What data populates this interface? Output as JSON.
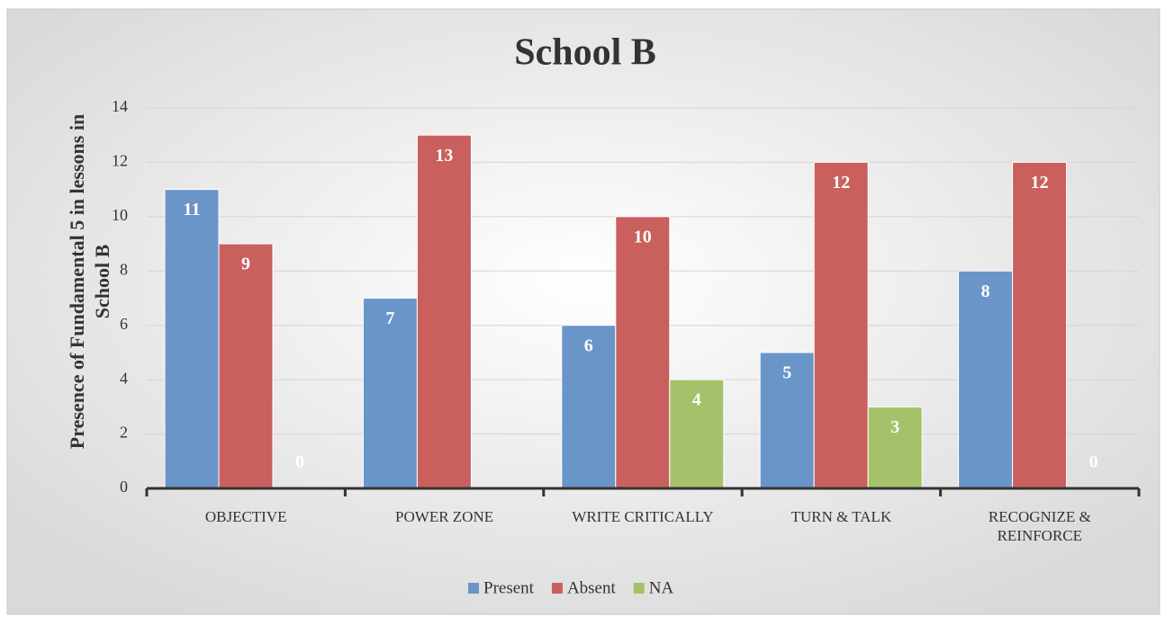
{
  "chart_data": {
    "type": "bar",
    "title": "School B",
    "y_label": "Presence of Fundamental 5 in lessons in School B",
    "categories": [
      "OBJECTIVE",
      "POWER ZONE",
      "WRITE CRITICALLY",
      "TURN & TALK",
      "RECOGNIZE & REINFORCE"
    ],
    "series": [
      {
        "name": "Present",
        "color": "#6a95c8",
        "values": [
          11,
          7,
          6,
          5,
          8
        ]
      },
      {
        "name": "Absent",
        "color": "#c9605e",
        "values": [
          9,
          13,
          10,
          12,
          12
        ]
      },
      {
        "name": "NA",
        "color": "#a5c26b",
        "values": [
          0,
          null,
          4,
          3,
          0
        ]
      }
    ],
    "ylim": [
      0,
      14
    ],
    "yticks": [
      0,
      2,
      4,
      6,
      8,
      10,
      12,
      14
    ],
    "grid": true,
    "legend": "bottom"
  }
}
